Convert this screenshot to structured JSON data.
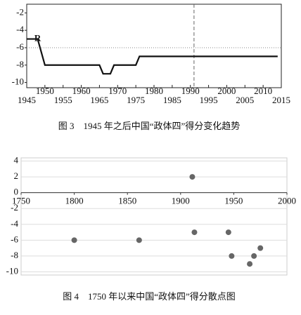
{
  "chart_data": [
    {
      "type": "line",
      "title": "图 3　1945 年之后中国“政体四”得分变化趋势",
      "x": [
        1945,
        1948,
        1950,
        1965,
        1966,
        1968,
        1969,
        1975,
        1976,
        2014
      ],
      "values": [
        -5,
        -5,
        -8,
        -8,
        -9,
        -9,
        -8,
        -8,
        -7,
        -7
      ],
      "color": "#111111",
      "xlim": [
        1945,
        2015
      ],
      "xticks": [
        1945,
        1950,
        1955,
        1960,
        1965,
        1970,
        1975,
        1980,
        1985,
        1990,
        1995,
        2000,
        2005,
        2010,
        2015
      ],
      "ylim": [
        -10.6,
        -1
      ],
      "yticks": [
        -2,
        -4,
        -6,
        -8,
        -10
      ],
      "vlines": [
        1991
      ],
      "hlines": [
        -6
      ],
      "annotations": [
        {
          "text": "R",
          "x": 1948,
          "y": -5
        }
      ]
    },
    {
      "type": "scatter",
      "title": "图 4　1750 年以来中国“政体四”得分散点图",
      "x": [
        1800,
        1861,
        1911,
        1913,
        1945,
        1948,
        1965,
        1969,
        1975
      ],
      "values": [
        -6,
        -6,
        2,
        -5,
        -5,
        -8,
        -9,
        -8,
        -7
      ],
      "color": "#666666",
      "xlim": [
        1750,
        2000
      ],
      "xticks": [
        1750,
        1800,
        1850,
        1900,
        1950,
        2000
      ],
      "ylim": [
        -10.4,
        4.4
      ],
      "yticks": [
        4,
        2,
        0,
        -2,
        -4,
        -6,
        -8,
        -10
      ],
      "grid": true
    }
  ]
}
